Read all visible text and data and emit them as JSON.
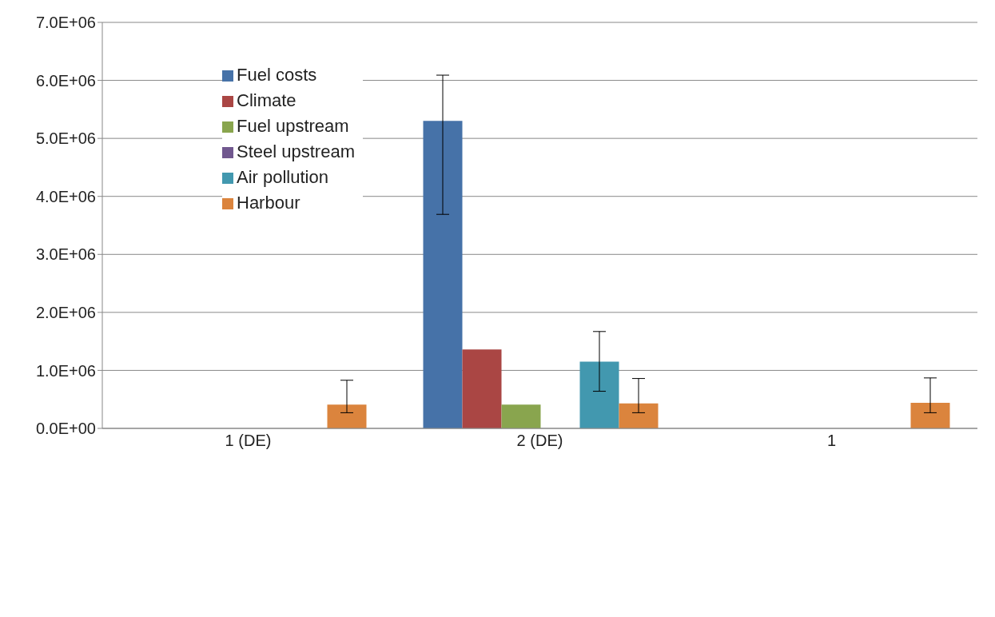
{
  "chart_data": {
    "type": "bar",
    "categories": [
      "1 (DE)",
      "2 (DE)",
      "1"
    ],
    "series": [
      {
        "name": "Fuel costs",
        "color": "#4672a8",
        "values": [
          0,
          5300000,
          0
        ],
        "errors": [
          null,
          [
            3690000,
            6090000
          ],
          null
        ]
      },
      {
        "name": "Climate",
        "color": "#aa4644",
        "values": [
          0,
          1360000,
          0
        ]
      },
      {
        "name": "Fuel upstream",
        "color": "#89a54e",
        "values": [
          0,
          410000,
          0
        ]
      },
      {
        "name": "Steel upstream",
        "color": "#71588f",
        "values": [
          0,
          0,
          0
        ]
      },
      {
        "name": "Air pollution",
        "color": "#4298af",
        "values": [
          0,
          1150000,
          0
        ],
        "errors": [
          null,
          [
            640000,
            1670000
          ],
          null
        ]
      },
      {
        "name": "Harbour",
        "color": "#db843d",
        "values": [
          410000,
          430000,
          440000
        ],
        "errors": [
          [
            270000,
            830000
          ],
          [
            270000,
            860000
          ],
          [
            270000,
            870000
          ]
        ]
      }
    ],
    "ylim": [
      0,
      7000000
    ],
    "yticks": [
      {
        "value": 0,
        "label": "0.0E+00"
      },
      {
        "value": 1000000,
        "label": "1.0E+06"
      },
      {
        "value": 2000000,
        "label": "2.0E+06"
      },
      {
        "value": 3000000,
        "label": "3.0E+06"
      },
      {
        "value": 4000000,
        "label": "4.0E+06"
      },
      {
        "value": 5000000,
        "label": "5.0E+06"
      },
      {
        "value": 6000000,
        "label": "6.0E+06"
      },
      {
        "value": 7000000,
        "label": "7.0E+06"
      }
    ],
    "grid": "y",
    "legend": "top left"
  }
}
